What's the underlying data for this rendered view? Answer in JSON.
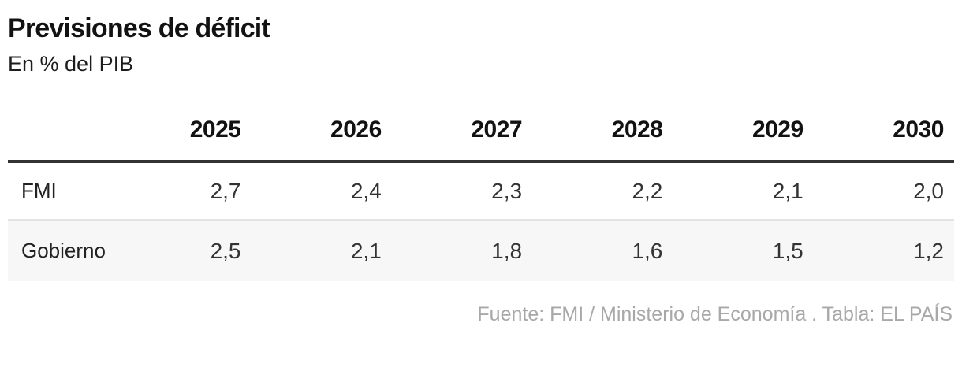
{
  "header": {
    "title": "Previsiones de déficit",
    "subtitle": "En % del PIB"
  },
  "table": {
    "columns": [
      "2025",
      "2026",
      "2027",
      "2028",
      "2029",
      "2030"
    ],
    "rows": [
      {
        "label": "FMI",
        "values": [
          "2,7",
          "2,4",
          "2,3",
          "2,2",
          "2,1",
          "2,0"
        ]
      },
      {
        "label": "Gobierno",
        "values": [
          "2,5",
          "2,1",
          "1,8",
          "1,6",
          "1,5",
          "1,2"
        ]
      }
    ]
  },
  "footer": {
    "credit": "Fuente: FMI / Ministerio de Economía . Tabla: EL PAÍS"
  },
  "colors": {
    "text": "#121212",
    "cell_text": "#333333",
    "header_rule": "#333333",
    "row_divider": "#e4e4e4",
    "alt_row_background": "#f7f7f7",
    "credit_text": "#a8a8a8",
    "background": "#ffffff"
  },
  "chart_data": {
    "type": "table",
    "title": "Previsiones de déficit",
    "subtitle": "En % del PIB",
    "unit": "% del PIB",
    "categories": [
      "2025",
      "2026",
      "2027",
      "2028",
      "2029",
      "2030"
    ],
    "series": [
      {
        "name": "FMI",
        "values": [
          2.7,
          2.4,
          2.3,
          2.2,
          2.1,
          2.0
        ]
      },
      {
        "name": "Gobierno",
        "values": [
          2.5,
          2.1,
          1.8,
          1.6,
          1.5,
          1.2
        ]
      }
    ],
    "source": "Fuente: FMI / Ministerio de Economía . Tabla: EL PAÍS"
  }
}
